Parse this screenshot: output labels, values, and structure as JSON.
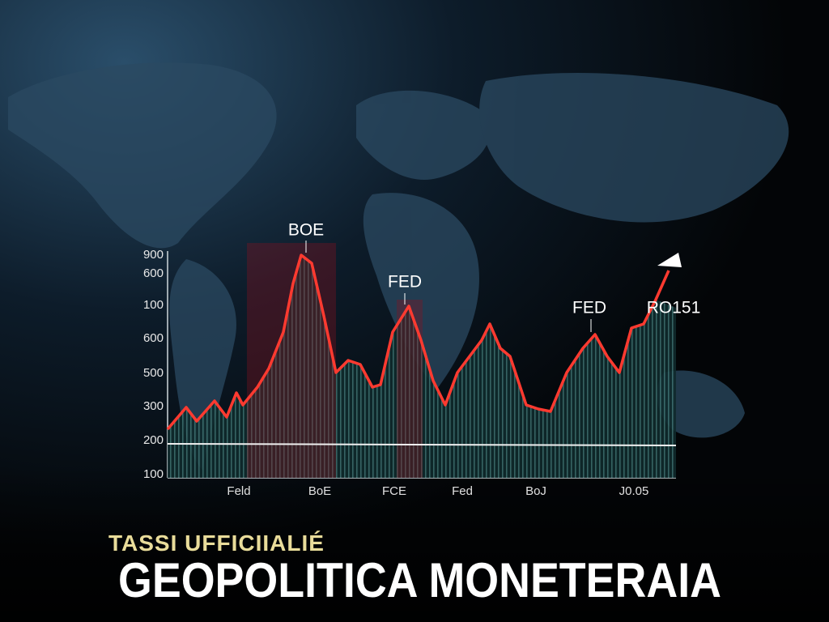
{
  "chart": {
    "y_axis_labels": [
      "900",
      "600",
      "100",
      "600",
      "500",
      "300",
      "200",
      "100"
    ],
    "x_axis_labels": [
      "Feld",
      "BoE",
      "FCE",
      "Fed",
      "BoJ",
      "J0.05"
    ],
    "annotations": [
      "BOE",
      "FED",
      "FED",
      "RO151"
    ]
  },
  "headline": "TASSI UFFICIIALIÉ",
  "title": "GEOPOLITICA MONETERAIA"
}
